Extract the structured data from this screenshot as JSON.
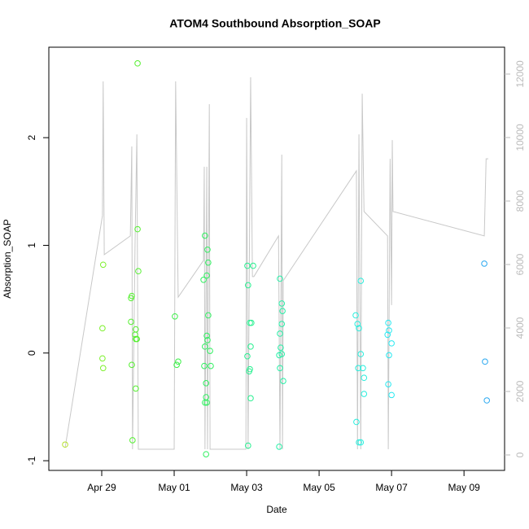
{
  "chart_data": {
    "type": "scatter",
    "title": "ATOM4 Southbound Absorption_SOAP",
    "x_label": "Date",
    "y_label": "Absorption_SOAP",
    "xlim": [
      -1.46,
      11.12
    ],
    "xticks": [
      {
        "value": 0,
        "label": "Apr 29"
      },
      {
        "value": 2,
        "label": "May 01"
      },
      {
        "value": 4,
        "label": "May 03"
      },
      {
        "value": 6,
        "label": "May 05"
      },
      {
        "value": 8,
        "label": "May 07"
      },
      {
        "value": 10,
        "label": "May 09"
      }
    ],
    "ylim": [
      -1.09,
      2.84
    ],
    "yticks": [
      -1,
      0,
      1,
      2
    ],
    "y2lim": [
      -487,
      12846
    ],
    "y2ticks": [
      0,
      2000,
      4000,
      6000,
      8000,
      10000,
      12000
    ],
    "series": [
      {
        "type": "line",
        "axis": "y2",
        "color": "#c8c8c8",
        "x": [
          -1.01,
          0.02,
          0.04,
          0.07,
          0.79,
          0.83,
          0.85,
          0.92,
          0.97,
          1.01,
          2.0,
          2.04,
          2.11,
          2.81,
          2.83,
          2.85,
          2.9,
          2.92,
          2.97,
          2.99,
          3.98,
          4.0,
          4.04,
          4.11,
          4.16,
          4.2,
          4.88,
          4.92,
          4.97,
          4.99,
          5.01,
          7.03,
          7.06,
          7.1,
          7.15,
          7.19,
          7.24,
          7.89,
          7.91,
          7.96,
          8.0,
          8.02,
          8.04,
          10.56,
          10.61,
          10.67
        ],
        "values": [
          230,
          7540,
          11770,
          6310,
          6900,
          9720,
          180,
          6640,
          10100,
          180,
          180,
          11770,
          4970,
          6130,
          9080,
          180,
          9080,
          180,
          11050,
          180,
          180,
          10620,
          180,
          11900,
          5620,
          5620,
          6900,
          180,
          9460,
          180,
          5490,
          8950,
          180,
          10100,
          180,
          11380,
          7670,
          6900,
          180,
          9330,
          4720,
          9920,
          7670,
          6900,
          9330,
          9330
        ]
      },
      {
        "color": "#b5e02a",
        "x": [
          -1.01
        ],
        "values": [
          -0.85
        ]
      },
      {
        "color": "#7cf02a",
        "x": [
          0.02,
          0.04,
          0.02,
          0.04
        ],
        "values": [
          0.23,
          0.82,
          -0.05,
          -0.14
        ]
      },
      {
        "color": "#55f030",
        "x": [
          0.81,
          0.83,
          0.81,
          0.83,
          0.85,
          0.92,
          0.94,
          0.94,
          0.97,
          0.99,
          0.99,
          1.01,
          0.94
        ],
        "values": [
          0.51,
          0.53,
          0.29,
          -0.11,
          -0.81,
          0.17,
          0.22,
          0.13,
          0.13,
          2.69,
          1.15,
          0.76,
          -0.33
        ]
      },
      {
        "color": "#3cf048",
        "x": [
          2.02,
          2.07,
          2.11
        ],
        "values": [
          0.34,
          -0.11,
          -0.08
        ]
      },
      {
        "color": "#30f060",
        "x": [
          2.81,
          2.85,
          2.92,
          2.94,
          2.9,
          2.94,
          2.9,
          2.92,
          2.85,
          2.99,
          2.83,
          3.01,
          2.88,
          2.88,
          2.85,
          2.9,
          2.88
        ],
        "values": [
          0.68,
          1.09,
          0.96,
          0.84,
          0.72,
          0.35,
          0.16,
          0.12,
          0.06,
          0.02,
          -0.12,
          -0.12,
          -0.28,
          -0.41,
          -0.46,
          -0.46,
          -0.94
        ]
      },
      {
        "color": "#28f090",
        "x": [
          4.02,
          4.18,
          4.04,
          4.09,
          4.13,
          4.11,
          4.02,
          4.09,
          4.07,
          4.11,
          4.04
        ],
        "values": [
          0.81,
          0.81,
          0.63,
          0.28,
          0.28,
          0.06,
          -0.03,
          -0.15,
          -0.17,
          -0.42,
          -0.86
        ]
      },
      {
        "color": "#28f0a8",
        "x": [
          4.92,
          4.97,
          4.99,
          4.97,
          4.92,
          4.94,
          4.9,
          4.97,
          4.92,
          5.01,
          4.9
        ],
        "values": [
          0.69,
          0.46,
          0.39,
          0.27,
          0.18,
          0.05,
          -0.02,
          -0.01,
          -0.14,
          -0.26,
          -0.87
        ]
      },
      {
        "color": "#28eedd",
        "x": [
          7.01,
          7.06,
          7.1,
          7.15,
          7.15,
          7.08,
          7.21,
          7.24,
          7.24,
          7.03,
          7.1,
          7.15
        ],
        "values": [
          0.35,
          0.27,
          0.23,
          0.67,
          -0.01,
          -0.14,
          -0.14,
          -0.23,
          -0.38,
          -0.64,
          -0.83,
          -0.83
        ]
      },
      {
        "color": "#28e8f0",
        "x": [
          7.91,
          7.93,
          7.89,
          8.0,
          7.93,
          7.91,
          8.0
        ],
        "values": [
          0.28,
          0.21,
          0.17,
          0.09,
          -0.02,
          -0.29,
          -0.39
        ]
      },
      {
        "color": "#2aa8f0",
        "x": [
          10.56,
          10.58,
          10.63
        ],
        "values": [
          0.83,
          -0.08,
          -0.44
        ]
      }
    ]
  }
}
